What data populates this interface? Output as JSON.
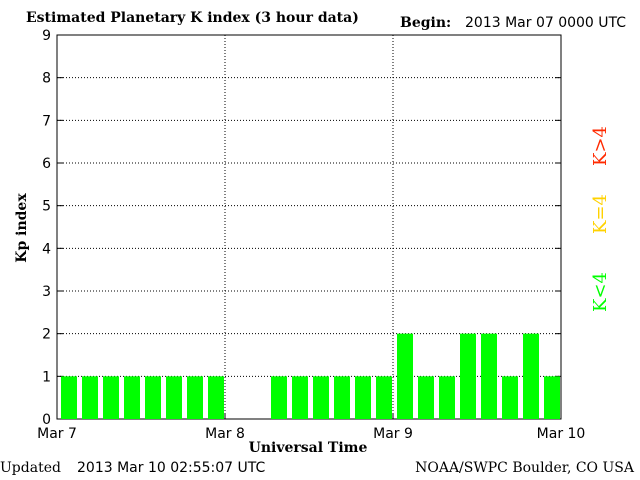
{
  "header": {
    "title": "Estimated Planetary K index (3 hour data)",
    "begin_label": "Begin:",
    "begin_value": "2013 Mar 07 0000 UTC"
  },
  "footer": {
    "updated_label": "Updated",
    "updated_value": "2013 Mar 10 02:55:07 UTC",
    "credit": "NOAA/SWPC Boulder, CO USA"
  },
  "legend": {
    "high": {
      "label": "K>4",
      "color": "#ff2a00"
    },
    "equal": {
      "label": "K=4",
      "color": "#ffd200"
    },
    "low": {
      "label": "K<4",
      "color": "#00ff00"
    }
  },
  "chart_data": {
    "type": "bar",
    "title": "Estimated Planetary K index (3 hour data)",
    "xlabel": "Universal Time",
    "ylabel": "Kp index",
    "ylim": [
      0,
      9
    ],
    "yticks": [
      "0",
      "1",
      "2",
      "3",
      "4",
      "5",
      "6",
      "7",
      "8",
      "9"
    ],
    "xlim": [
      "2013-03-07 00:00",
      "2013-03-10 00:00"
    ],
    "x_tick_labels": [
      "Mar 7",
      "Mar 8",
      "Mar 9",
      "Mar 10"
    ],
    "grid": true,
    "interval_hours": 3,
    "x": [
      "Mar 7 00",
      "Mar 7 03",
      "Mar 7 06",
      "Mar 7 09",
      "Mar 7 12",
      "Mar 7 15",
      "Mar 7 18",
      "Mar 7 21",
      "Mar 8 00",
      "Mar 8 03",
      "Mar 8 06",
      "Mar 8 09",
      "Mar 8 12",
      "Mar 8 15",
      "Mar 8 18",
      "Mar 8 21",
      "Mar 9 00",
      "Mar 9 03",
      "Mar 9 06",
      "Mar 9 09",
      "Mar 9 12",
      "Mar 9 15",
      "Mar 9 18",
      "Mar 9 21"
    ],
    "values": [
      1,
      1,
      1,
      1,
      1,
      1,
      1,
      1,
      null,
      null,
      1,
      1,
      1,
      1,
      1,
      1,
      2,
      1,
      1,
      2,
      2,
      1,
      2,
      1
    ],
    "bar_color": "#00ff00"
  }
}
